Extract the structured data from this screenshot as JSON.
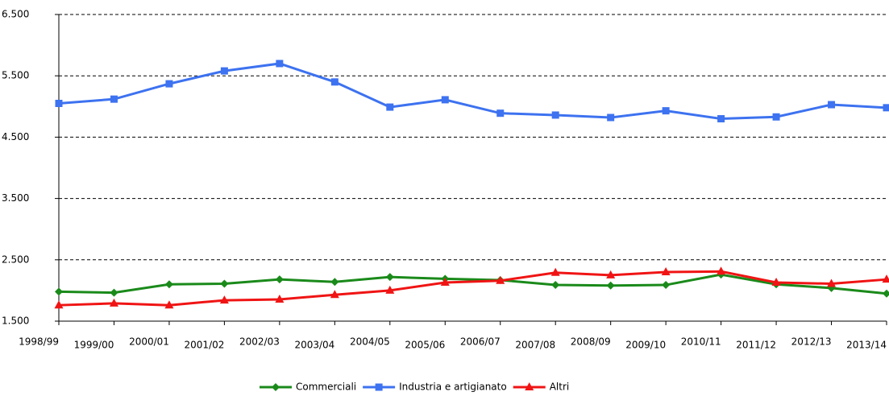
{
  "chart_data": {
    "type": "line",
    "categories": [
      "1998/99",
      "1999/00",
      "2000/01",
      "2001/02",
      "2002/03",
      "2003/04",
      "2004/05",
      "2005/06",
      "2006/07",
      "2007/08",
      "2008/09",
      "2009/10",
      "2010/11",
      "2011/12",
      "2012/13",
      "2013/14"
    ],
    "series": [
      {
        "name": "Commerciali",
        "color": "#1a8a1a",
        "marker": "diamond",
        "values": [
          1980,
          1965,
          2100,
          2110,
          2180,
          2140,
          2220,
          2190,
          2170,
          2090,
          2080,
          2090,
          2260,
          2100,
          2040,
          1950
        ]
      },
      {
        "name": "Industria e artigianato",
        "color": "#3d72f0",
        "marker": "square",
        "values": [
          5050,
          5120,
          5370,
          5580,
          5700,
          5400,
          4990,
          5110,
          4890,
          4860,
          4820,
          4930,
          4800,
          4830,
          5030,
          4980
        ]
      },
      {
        "name": "Altri",
        "color": "#f01414",
        "marker": "triangle",
        "values": [
          1760,
          1790,
          1760,
          1840,
          1855,
          1930,
          2000,
          2130,
          2160,
          2290,
          2250,
          2300,
          2310,
          2130,
          2110,
          2180
        ]
      }
    ],
    "ylim": [
      1500,
      6500
    ],
    "yticks": [
      {
        "value": 1500,
        "label": "1.500"
      },
      {
        "value": 2500,
        "label": "2.500"
      },
      {
        "value": 3500,
        "label": "3.500"
      },
      {
        "value": 4500,
        "label": "4.500"
      },
      {
        "value": 5500,
        "label": "5.500"
      },
      {
        "value": 6500,
        "label": "6.500"
      }
    ],
    "grid": true,
    "legend": "bottom"
  }
}
